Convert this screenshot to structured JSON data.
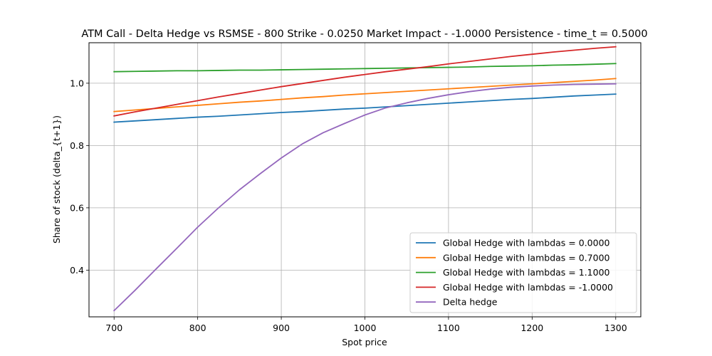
{
  "chart_data": {
    "type": "line",
    "title": "ATM Call - Delta Hedge vs RSMSE - 800 Strike - 0.0250 Market Impact - -1.0000 Persistence - time_t = 0.5000",
    "xlabel": "Spot price",
    "ylabel": "Share of stock (delta_{t+1})",
    "xlim": [
      670,
      1330
    ],
    "ylim": [
      0.25,
      1.13
    ],
    "xticks": [
      700,
      800,
      900,
      1000,
      1100,
      1200,
      1300
    ],
    "yticks": [
      0.4,
      0.6,
      0.8,
      1.0
    ],
    "xtick_labels": [
      "700",
      "800",
      "900",
      "1000",
      "1100",
      "1200",
      "1300"
    ],
    "ytick_labels": [
      "0.4",
      "0.6",
      "0.8",
      "1.0"
    ],
    "grid": true,
    "legend_position": "lower-right",
    "x": [
      700,
      725,
      750,
      775,
      800,
      825,
      850,
      875,
      900,
      925,
      950,
      975,
      1000,
      1025,
      1050,
      1075,
      1100,
      1125,
      1150,
      1175,
      1200,
      1225,
      1250,
      1275,
      1300
    ],
    "series": [
      {
        "name": "Global Hedge with lambdas = 0.0000",
        "color": "#1f77b4",
        "values": [
          0.875,
          0.879,
          0.883,
          0.887,
          0.891,
          0.894,
          0.898,
          0.902,
          0.906,
          0.909,
          0.913,
          0.917,
          0.92,
          0.924,
          0.928,
          0.932,
          0.936,
          0.94,
          0.944,
          0.948,
          0.951,
          0.955,
          0.959,
          0.962,
          0.965
        ]
      },
      {
        "name": "Global Hedge with lambdas = 0.7000",
        "color": "#ff7f0e",
        "values": [
          0.909,
          0.914,
          0.919,
          0.924,
          0.929,
          0.934,
          0.939,
          0.943,
          0.948,
          0.953,
          0.957,
          0.962,
          0.966,
          0.97,
          0.974,
          0.978,
          0.982,
          0.986,
          0.99,
          0.994,
          0.998,
          1.002,
          1.006,
          1.01,
          1.015
        ]
      },
      {
        "name": "Global Hedge with lambdas = 1.1000",
        "color": "#2ca02c",
        "values": [
          1.037,
          1.038,
          1.039,
          1.04,
          1.04,
          1.041,
          1.042,
          1.042,
          1.043,
          1.044,
          1.045,
          1.046,
          1.047,
          1.048,
          1.049,
          1.05,
          1.051,
          1.052,
          1.054,
          1.055,
          1.056,
          1.058,
          1.059,
          1.061,
          1.063
        ]
      },
      {
        "name": "Global Hedge with lambdas = -1.0000",
        "color": "#d62728",
        "values": [
          0.895,
          0.908,
          0.92,
          0.932,
          0.944,
          0.956,
          0.967,
          0.978,
          0.989,
          0.999,
          1.009,
          1.019,
          1.028,
          1.037,
          1.045,
          1.053,
          1.062,
          1.07,
          1.078,
          1.086,
          1.093,
          1.1,
          1.106,
          1.112,
          1.117
        ]
      },
      {
        "name": "Delta hedge",
        "color": "#9467bd",
        "values": [
          0.27,
          0.335,
          0.403,
          0.47,
          0.538,
          0.6,
          0.658,
          0.71,
          0.76,
          0.805,
          0.841,
          0.87,
          0.898,
          0.921,
          0.937,
          0.951,
          0.963,
          0.973,
          0.981,
          0.987,
          0.991,
          0.994,
          0.996,
          0.997,
          0.998
        ]
      }
    ]
  }
}
